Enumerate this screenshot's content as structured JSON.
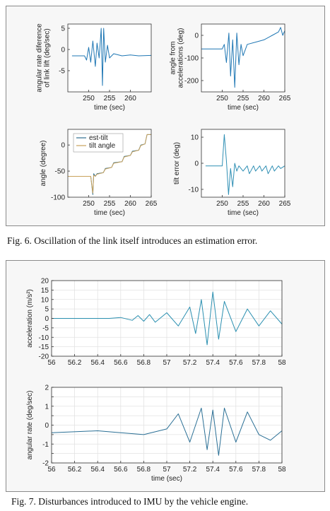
{
  "fig6": {
    "caption": "Fig. 6.   Oscillation of the link itself introduces an estimation error.",
    "chart_data": [
      {
        "type": "line",
        "ylabel": "angular rate diference of link lift (deg/sec)",
        "ylabel_lines": [
          "angular rate diference",
          "of link lift (deg/sec)"
        ],
        "xlabel": "time (sec)",
        "xlim": [
          245,
          265
        ],
        "ylim": [
          -10,
          6
        ],
        "xticks": [
          250,
          255,
          260
        ],
        "yticks": [
          -5,
          0,
          5
        ],
        "color": "#1f77b4",
        "x": [
          246,
          249,
          249.5,
          250,
          250.5,
          251,
          251.6,
          252,
          252.5,
          253,
          253.3,
          253.6,
          254,
          254.5,
          255,
          256,
          258,
          260,
          262,
          265
        ],
        "y": [
          -1.5,
          -1.5,
          -2.5,
          0.5,
          -3,
          2,
          -4,
          1.5,
          -2,
          5,
          -8.5,
          5,
          -3,
          1,
          -2,
          -1,
          -1.5,
          -1.3,
          -1.5,
          -1.4
        ]
      },
      {
        "type": "line",
        "ylabel": "angle from accelerations (deg)",
        "ylabel_lines": [
          "angle from",
          "accelerations (deg)"
        ],
        "xlabel": "time (sec)",
        "xlim": [
          245,
          265
        ],
        "ylim": [
          -250,
          50
        ],
        "xticks": [
          250,
          255,
          260,
          265
        ],
        "yticks": [
          -200,
          -100,
          0
        ],
        "color": "#1f77b4",
        "x": [
          245,
          250,
          250.5,
          251,
          251.6,
          252,
          252.5,
          253,
          253.5,
          254,
          254.5,
          255,
          256,
          258,
          260,
          262,
          263.5,
          264,
          264.5,
          265
        ],
        "y": [
          -60,
          -60,
          -40,
          -120,
          10,
          -180,
          -20,
          -230,
          10,
          -130,
          -40,
          -90,
          -40,
          -30,
          -20,
          0,
          15,
          35,
          0,
          20
        ]
      },
      {
        "type": "line",
        "ylabel": "angle (degree)",
        "xlabel": "time (sec)",
        "xlim": [
          245,
          265
        ],
        "ylim": [
          -100,
          30
        ],
        "xticks": [
          250,
          255,
          260,
          265
        ],
        "yticks": [
          -100,
          -50,
          0
        ],
        "legend": [
          "est-tilt",
          "tilt angle"
        ],
        "legend_position": "top",
        "series": [
          {
            "name": "est-tilt",
            "color": "#2f6f8f",
            "x": [
              245,
              250.5,
              251,
              251.2,
              251.6,
              252,
              253.5,
              254,
              255.5,
              256,
              258,
              258.5,
              260,
              260.5,
              262,
              262.5,
              263.5,
              264,
              265
            ],
            "y": [
              -60,
              -60,
              -95,
              -55,
              -60,
              -55,
              -53,
              -45,
              -43,
              -34,
              -32,
              -22,
              -20,
              -12,
              -10,
              0,
              2,
              20,
              20
            ]
          },
          {
            "name": "tilt angle",
            "color": "#c9a25c",
            "x": [
              245,
              250.5,
              251,
              251.2,
              251.6,
              252,
              253.5,
              254,
              255.5,
              256,
              258,
              258.5,
              260,
              260.5,
              262,
              262.5,
              263.5,
              264,
              265
            ],
            "y": [
              -60,
              -60,
              -92,
              -58,
              -60,
              -56,
              -53,
              -46,
              -43,
              -35,
              -32,
              -23,
              -20,
              -13,
              -10,
              -1,
              2,
              20,
              20
            ]
          }
        ]
      },
      {
        "type": "line",
        "ylabel": "tilt error (deg)",
        "xlabel": "time (sec)",
        "xlim": [
          245,
          265
        ],
        "ylim": [
          -13,
          13
        ],
        "xticks": [
          250,
          255,
          260,
          265
        ],
        "yticks": [
          -10,
          0,
          10
        ],
        "color": "#2f8fb4",
        "x": [
          246,
          250,
          250.5,
          251,
          251.5,
          252,
          252.5,
          253,
          253.5,
          254,
          255,
          256,
          256.5,
          257.5,
          258,
          259,
          259.5,
          260.5,
          261,
          262,
          262.5,
          263.5,
          264,
          265
        ],
        "y": [
          -1,
          -1,
          11,
          1,
          -12,
          -2,
          -9,
          0,
          -3,
          -1,
          -3,
          -1,
          -4,
          -1,
          -3,
          -1,
          -3,
          -1,
          -4,
          -1,
          -3,
          -1,
          -2,
          -1
        ]
      }
    ]
  },
  "fig7": {
    "caption": "Fig. 7.   Disturbances introduced to IMU by the vehicle engine.",
    "chart_data": [
      {
        "type": "line",
        "ylabel": "acceleration (m/s²)",
        "xlabel": "",
        "xlim": [
          56,
          58
        ],
        "ylim": [
          -20,
          20
        ],
        "xticks": [
          56,
          56.2,
          56.4,
          56.6,
          56.8,
          57,
          57.2,
          57.4,
          57.6,
          57.8,
          58
        ],
        "xtick_labels": [
          "56",
          "56.2",
          "56.4",
          "56.6",
          "56.8",
          "57",
          "57.2",
          "57.4",
          "57.6",
          "57.8",
          "58"
        ],
        "yticks": [
          -20,
          -15,
          -10,
          -5,
          0,
          5,
          10,
          15,
          20
        ],
        "grid": true,
        "color": "#2a8fb0",
        "x": [
          56,
          56.5,
          56.6,
          56.7,
          56.75,
          56.8,
          56.85,
          56.9,
          57.0,
          57.1,
          57.2,
          57.25,
          57.3,
          57.35,
          57.4,
          57.45,
          57.5,
          57.6,
          57.7,
          57.8,
          57.9,
          58
        ],
        "y": [
          0,
          0,
          0.5,
          -1,
          1.5,
          -1.5,
          2,
          -2,
          3,
          -4,
          6,
          -8,
          10,
          -14,
          14,
          -11,
          9,
          -7,
          5,
          -4,
          4,
          -3
        ]
      },
      {
        "type": "line",
        "ylabel": "angular rate (deg/sec)",
        "xlabel": "time (sec)",
        "xlim": [
          56,
          58
        ],
        "ylim": [
          -2,
          2
        ],
        "xticks": [
          56,
          56.2,
          56.4,
          56.6,
          56.8,
          57,
          57.2,
          57.4,
          57.6,
          57.8,
          58
        ],
        "xtick_labels": [
          "56",
          "56.2",
          "56.4",
          "56.6",
          "56.8",
          "57",
          "57.2",
          "57.4",
          "57.6",
          "57.8",
          "58"
        ],
        "yticks": [
          -2,
          -1.5,
          -1,
          -0.5,
          0,
          0.5,
          1,
          1.5,
          2
        ],
        "ytick_labels": [
          "-2",
          "",
          "-1",
          "",
          "0",
          "",
          "1",
          "",
          "2"
        ],
        "grid": true,
        "color": "#2a6f95",
        "x": [
          56,
          56.4,
          56.6,
          56.8,
          57.0,
          57.1,
          57.2,
          57.3,
          57.35,
          57.4,
          57.45,
          57.5,
          57.6,
          57.7,
          57.8,
          57.9,
          58
        ],
        "y": [
          -0.4,
          -0.3,
          -0.4,
          -0.5,
          -0.2,
          0.6,
          -0.9,
          0.9,
          -1.3,
          0.8,
          -1.6,
          0.9,
          -0.9,
          0.7,
          -0.5,
          -0.8,
          -0.3
        ]
      }
    ]
  }
}
